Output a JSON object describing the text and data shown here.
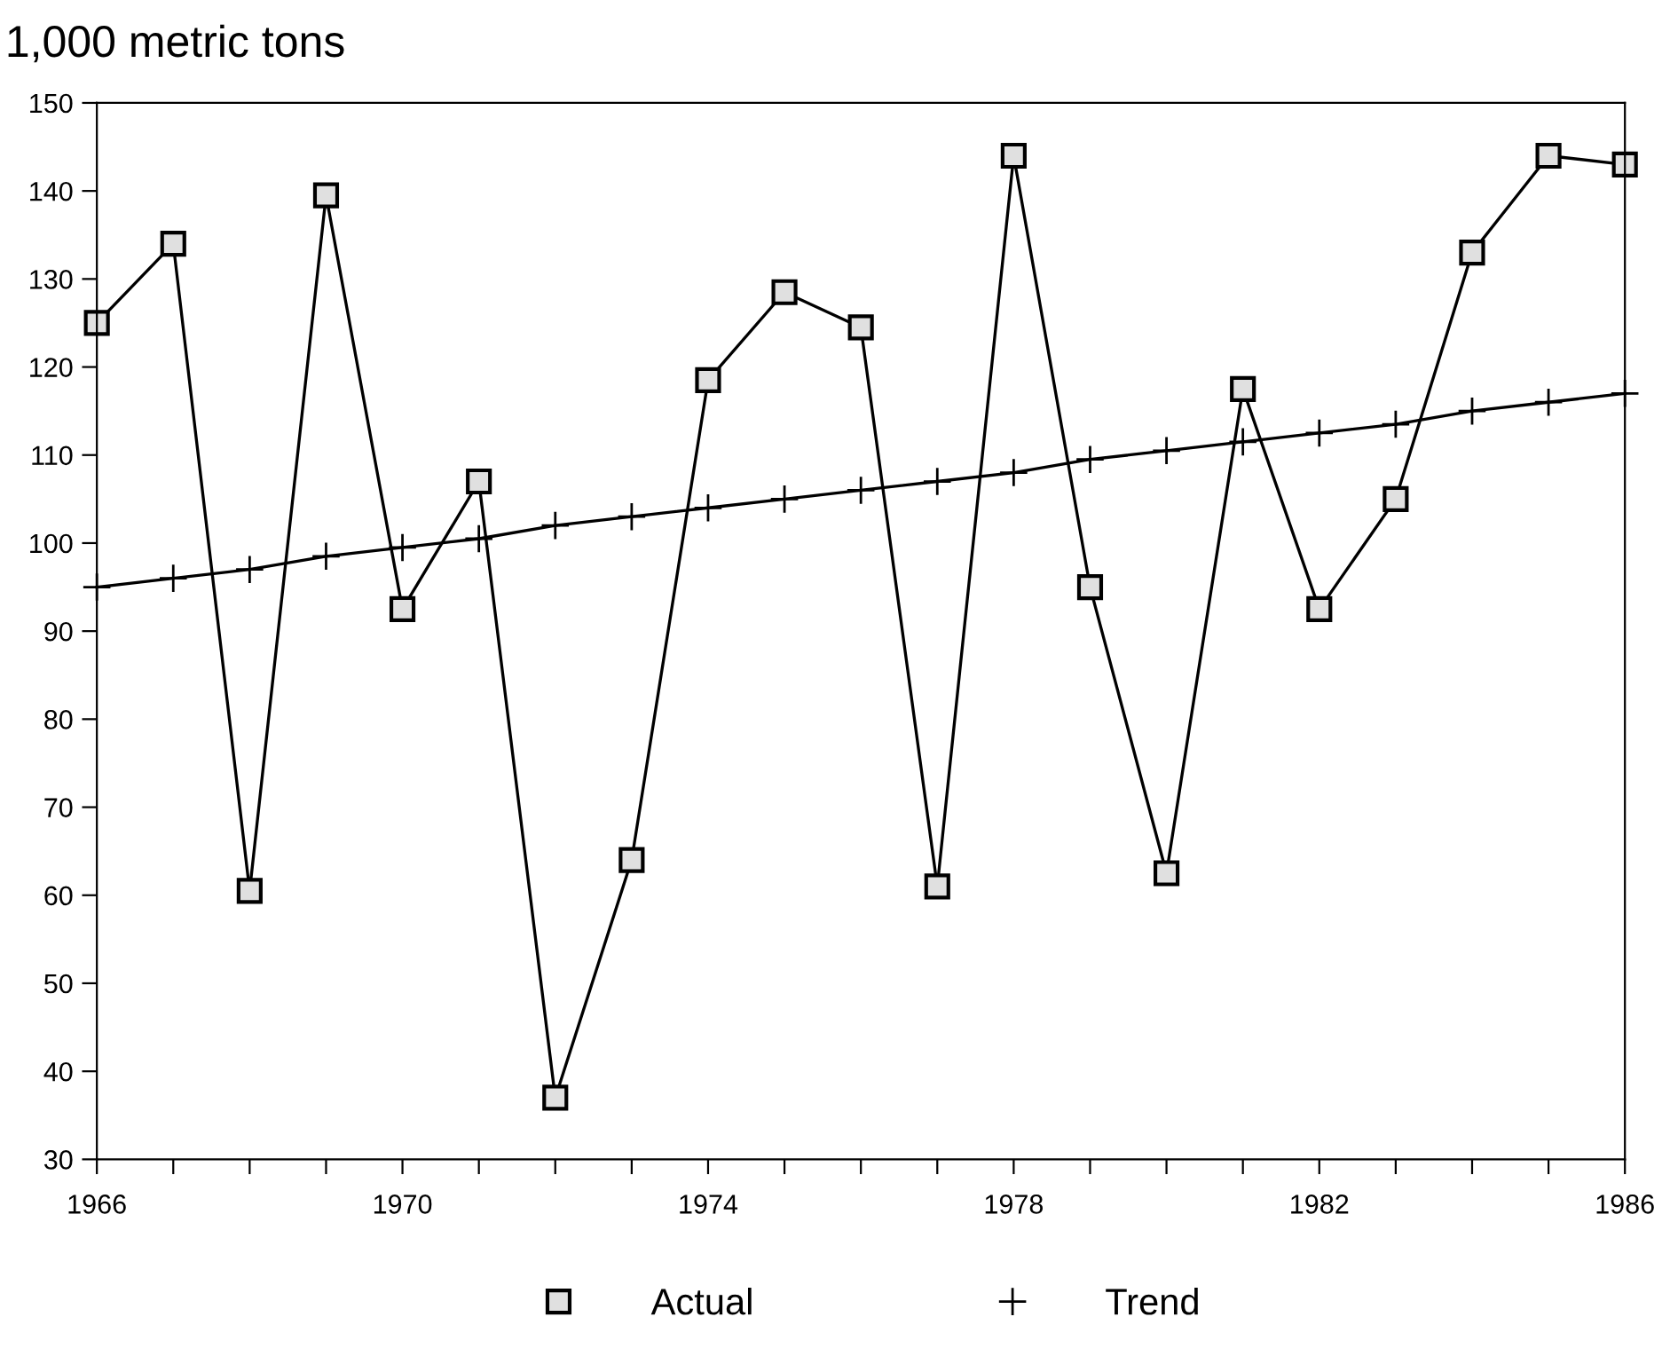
{
  "chart_data": {
    "type": "line",
    "ylabel": "1,000 metric tons",
    "x": [
      1966,
      1967,
      1968,
      1969,
      1970,
      1971,
      1972,
      1973,
      1974,
      1975,
      1976,
      1977,
      1978,
      1979,
      1980,
      1981,
      1982,
      1983,
      1984,
      1985,
      1986
    ],
    "series": [
      {
        "name": "Actual",
        "color": "#000000",
        "marker": "square",
        "values": [
          125,
          134,
          60.5,
          139.5,
          92.5,
          107,
          37,
          64,
          118.5,
          128.5,
          124.5,
          61,
          144,
          95,
          62.5,
          117.5,
          92.5,
          105,
          133,
          144,
          143
        ]
      },
      {
        "name": "Trend",
        "color": "#000000",
        "marker": "cross",
        "values": [
          95,
          96,
          97,
          98.5,
          99.5,
          100.5,
          102,
          103,
          104,
          105,
          106,
          107,
          108,
          109.5,
          110.5,
          111.5,
          112.5,
          113.5,
          115,
          116,
          117
        ]
      }
    ],
    "xlim": [
      1966,
      1986
    ],
    "ylim": [
      30,
      150
    ],
    "xticks": [
      1966,
      {
        "value": 1967,
        "label": null
      },
      {
        "value": 1968,
        "label": null
      },
      {
        "value": 1969,
        "label": null
      },
      1970,
      {
        "value": 1971,
        "label": null
      },
      {
        "value": 1972,
        "label": null
      },
      {
        "value": 1973,
        "label": null
      },
      1974,
      {
        "value": 1975,
        "label": null
      },
      {
        "value": 1976,
        "label": null
      },
      {
        "value": 1977,
        "label": null
      },
      1978,
      {
        "value": 1979,
        "label": null
      },
      {
        "value": 1980,
        "label": null
      },
      {
        "value": 1981,
        "label": null
      },
      1982,
      {
        "value": 1983,
        "label": null
      },
      {
        "value": 1984,
        "label": null
      },
      {
        "value": 1985,
        "label": null
      },
      1986
    ],
    "yticks": [
      30,
      40,
      50,
      60,
      70,
      80,
      90,
      100,
      110,
      120,
      130,
      140,
      150
    ],
    "grid": false,
    "legend": "bottom",
    "line_style": "solid"
  }
}
